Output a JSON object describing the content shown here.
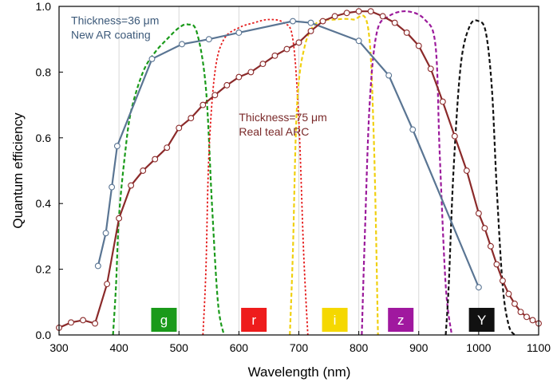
{
  "chart_data": {
    "type": "line",
    "xlabel": "Wavelength (nm)",
    "ylabel": "Quantum efficiency",
    "xlim": [
      300,
      1100
    ],
    "ylim": [
      0,
      1.0
    ],
    "x_ticks": [
      "300",
      "400",
      "500",
      "600",
      "700",
      "800",
      "900",
      "1000",
      "1100"
    ],
    "y_ticks": [
      "0.0",
      "0.2",
      "0.4",
      "0.6",
      "0.8",
      "1.0"
    ],
    "grid": "vertical",
    "annotations": [
      {
        "lines": [
          "Thickness=36 μm",
          "New AR coating"
        ],
        "color": "#3d5a7a",
        "x": 320,
        "y": 0.945
      },
      {
        "lines": [
          "Thickness=75 μm",
          "Real teal ARC"
        ],
        "color": "#7a2a2a",
        "x": 600,
        "y": 0.65
      }
    ],
    "series": [
      {
        "color": "#5a7593",
        "style": "solid-markers",
        "x": [
          365,
          378,
          388,
          397,
          455,
          505,
          550,
          600,
          690,
          720,
          800,
          850,
          890,
          1000
        ],
        "y": [
          0.21,
          0.31,
          0.45,
          0.575,
          0.84,
          0.885,
          0.9,
          0.92,
          0.955,
          0.95,
          0.895,
          0.79,
          0.625,
          0.145
        ]
      },
      {
        "color": "#8b2a2a",
        "style": "solid-markers",
        "x": [
          300,
          320,
          340,
          360,
          380,
          400,
          420,
          440,
          460,
          480,
          500,
          520,
          540,
          560,
          580,
          600,
          620,
          640,
          660,
          680,
          700,
          720,
          740,
          760,
          780,
          800,
          820,
          840,
          860,
          880,
          900,
          920,
          940,
          960,
          980,
          1000,
          1010,
          1020,
          1030,
          1040,
          1050,
          1060,
          1070,
          1080,
          1090,
          1100
        ],
        "y": [
          0.022,
          0.038,
          0.045,
          0.035,
          0.155,
          0.355,
          0.455,
          0.5,
          0.535,
          0.57,
          0.63,
          0.66,
          0.7,
          0.73,
          0.76,
          0.785,
          0.8,
          0.825,
          0.85,
          0.87,
          0.89,
          0.925,
          0.955,
          0.97,
          0.98,
          0.985,
          0.985,
          0.97,
          0.95,
          0.92,
          0.88,
          0.81,
          0.71,
          0.605,
          0.5,
          0.37,
          0.325,
          0.27,
          0.215,
          0.165,
          0.125,
          0.095,
          0.07,
          0.055,
          0.045,
          0.035
        ]
      },
      {
        "name": "g",
        "color": "#1a9a1a",
        "style": "dashed",
        "x": [
          390,
          395,
          400,
          410,
          420,
          440,
          460,
          480,
          500,
          515,
          530,
          545,
          555,
          565,
          575
        ],
        "y": [
          0.0,
          0.15,
          0.36,
          0.55,
          0.68,
          0.8,
          0.86,
          0.9,
          0.935,
          0.945,
          0.92,
          0.75,
          0.4,
          0.1,
          0.0
        ]
      },
      {
        "name": "r",
        "color": "#e41a1a",
        "style": "dotted",
        "x": [
          540,
          545,
          550,
          560,
          575,
          600,
          625,
          650,
          675,
          690,
          700,
          708,
          715
        ],
        "y": [
          0.0,
          0.2,
          0.55,
          0.8,
          0.9,
          0.935,
          0.95,
          0.96,
          0.95,
          0.9,
          0.65,
          0.25,
          0.0
        ]
      },
      {
        "name": "i",
        "color": "#f0d010",
        "style": "dashed",
        "x": [
          685,
          690,
          697,
          710,
          730,
          760,
          790,
          815,
          825,
          832
        ],
        "y": [
          0.0,
          0.25,
          0.7,
          0.88,
          0.95,
          0.96,
          0.96,
          0.94,
          0.6,
          0.0
        ]
      },
      {
        "name": "z",
        "color": "#9b1a9b",
        "style": "dashed",
        "x": [
          805,
          810,
          818,
          830,
          850,
          880,
          910,
          928,
          935,
          945,
          955
        ],
        "y": [
          0.0,
          0.3,
          0.7,
          0.92,
          0.97,
          0.985,
          0.96,
          0.88,
          0.55,
          0.15,
          0.0
        ]
      },
      {
        "name": "Y",
        "color": "#111111",
        "style": "dashed",
        "x": [
          945,
          950,
          958,
          970,
          985,
          1000,
          1012,
          1022,
          1030,
          1040,
          1050,
          1060
        ],
        "y": [
          0.0,
          0.15,
          0.5,
          0.82,
          0.94,
          0.955,
          0.92,
          0.75,
          0.45,
          0.15,
          0.03,
          0.0
        ]
      }
    ],
    "filter_labels": [
      {
        "label": "g",
        "x": 475,
        "bg": "#1a9a1a",
        "fg": "#ffffff"
      },
      {
        "label": "r",
        "x": 625,
        "bg": "#ee1c1c",
        "fg": "#ffffff"
      },
      {
        "label": "i",
        "x": 760,
        "bg": "#f5d800",
        "fg": "#ffffff"
      },
      {
        "label": "z",
        "x": 870,
        "bg": "#a0189f",
        "fg": "#ffffff"
      },
      {
        "label": "Y",
        "x": 1005,
        "bg": "#111111",
        "fg": "#ffffff"
      }
    ]
  }
}
